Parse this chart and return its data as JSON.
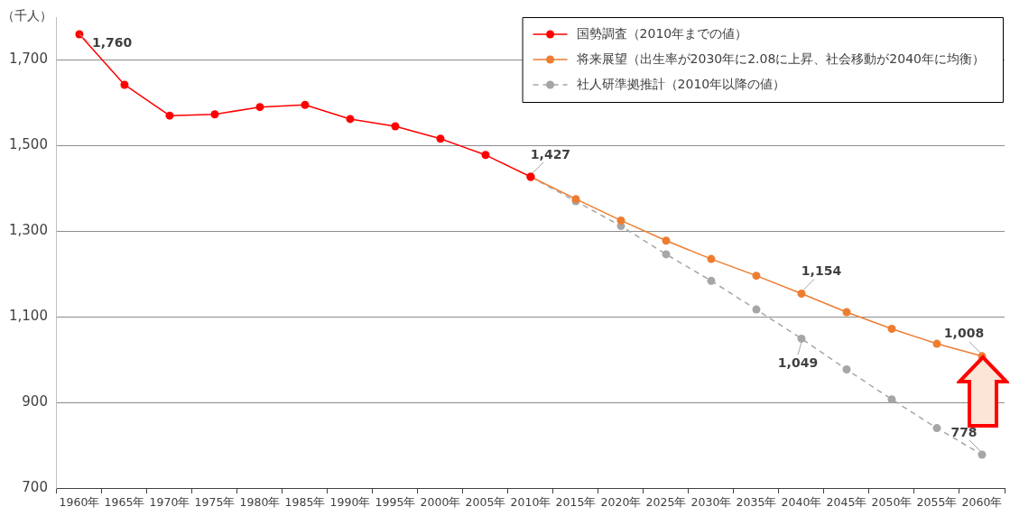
{
  "chart_data": {
    "type": "line",
    "ylabel": "（千人）",
    "categories": [
      "1960年",
      "1965年",
      "1970年",
      "1975年",
      "1980年",
      "1985年",
      "1990年",
      "1995年",
      "2000年",
      "2005年",
      "2010年",
      "2015年",
      "2020年",
      "2025年",
      "2030年",
      "2035年",
      "2040年",
      "2045年",
      "2050年",
      "2055年",
      "2060年"
    ],
    "series": [
      {
        "name": "国勢調査（2010年までの値）",
        "color": "#ff0000",
        "line_style": "solid",
        "values": [
          1760,
          1642,
          1570,
          1573,
          1590,
          1595,
          1562,
          1545,
          1516,
          1478,
          1427,
          null,
          null,
          null,
          null,
          null,
          null,
          null,
          null,
          null,
          null
        ],
        "value_labels": [
          "1,760",
          null,
          null,
          null,
          null,
          null,
          null,
          null,
          null,
          null,
          "1,427",
          null,
          null,
          null,
          null,
          null,
          null,
          null,
          null,
          null,
          null
        ]
      },
      {
        "name": "将来展望（出生率が2030年に2.08に上昇、社会移動が2040年に均衡）",
        "color": "#ed7d31",
        "line_style": "solid",
        "values": [
          null,
          null,
          null,
          null,
          null,
          null,
          null,
          null,
          null,
          null,
          1427,
          1375,
          1325,
          1278,
          1235,
          1196,
          1154,
          1111,
          1072,
          1037,
          1008
        ],
        "value_labels": [
          null,
          null,
          null,
          null,
          null,
          null,
          null,
          null,
          null,
          null,
          null,
          null,
          null,
          null,
          null,
          null,
          "1,154",
          null,
          null,
          null,
          "1,008"
        ]
      },
      {
        "name": "社人研準拠推計（2010年以降の値）",
        "color": "#a6a6a6",
        "line_style": "dashed",
        "values": [
          null,
          null,
          null,
          null,
          null,
          null,
          null,
          null,
          null,
          null,
          1427,
          1370,
          1312,
          1246,
          1184,
          1117,
          1049,
          977,
          907,
          840,
          778
        ],
        "value_labels": [
          null,
          null,
          null,
          null,
          null,
          null,
          null,
          null,
          null,
          null,
          null,
          null,
          null,
          null,
          null,
          null,
          "1,049",
          null,
          null,
          null,
          "778"
        ]
      }
    ],
    "ylim": [
      700,
      1800
    ],
    "yticks": [
      700,
      900,
      {
        "value": 1100,
        "label": "1,100"
      },
      {
        "value": 1300,
        "label": "1,300"
      },
      {
        "value": 1500,
        "label": "1,500"
      },
      {
        "value": 1700,
        "label": "1,700"
      }
    ],
    "grid": "y",
    "legend": "top right",
    "marker": "circle"
  }
}
